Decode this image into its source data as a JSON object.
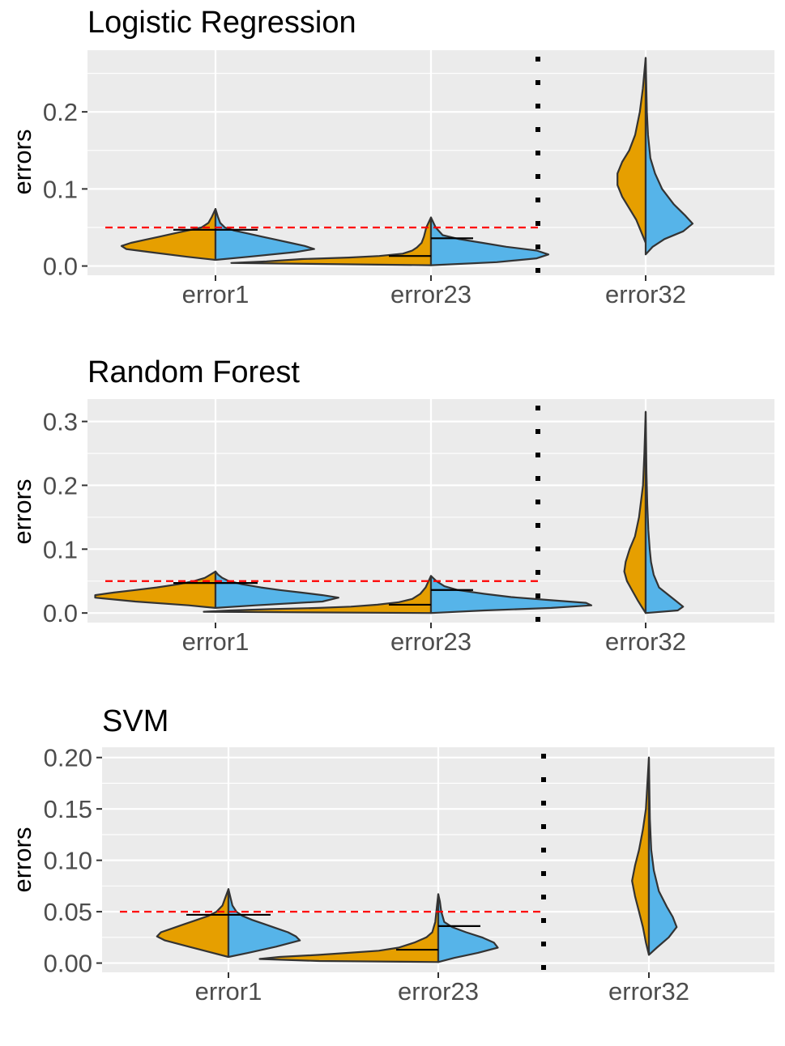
{
  "chart_data": [
    {
      "type": "violin",
      "title": "Logistic Regression",
      "ylabel": "errors",
      "xlabel": "",
      "categories": [
        "error1",
        "error23",
        "error32"
      ],
      "ylim": [
        -0.012,
        0.28
      ],
      "yticks": [
        0.0,
        0.1,
        0.2
      ],
      "ytick_labels": [
        "0.0",
        "0.1",
        "0.2"
      ],
      "reference_line": 0.05,
      "divider_after_category": "error23",
      "violins": [
        {
          "category": "error1",
          "median": 0.047,
          "left": [
            [
              0.008,
              0
            ],
            [
              0.012,
              0.12
            ],
            [
              0.018,
              0.28
            ],
            [
              0.022,
              0.38
            ],
            [
              0.026,
              0.4
            ],
            [
              0.03,
              0.36
            ],
            [
              0.034,
              0.3
            ],
            [
              0.038,
              0.24
            ],
            [
              0.042,
              0.18
            ],
            [
              0.046,
              0.12
            ],
            [
              0.05,
              0.06
            ],
            [
              0.056,
              0.03
            ],
            [
              0.064,
              0.015
            ],
            [
              0.074,
              0
            ]
          ],
          "right": [
            [
              0.008,
              0
            ],
            [
              0.012,
              0.14
            ],
            [
              0.018,
              0.34
            ],
            [
              0.022,
              0.42
            ],
            [
              0.026,
              0.38
            ],
            [
              0.03,
              0.32
            ],
            [
              0.034,
              0.26
            ],
            [
              0.038,
              0.2
            ],
            [
              0.042,
              0.14
            ],
            [
              0.046,
              0.08
            ],
            [
              0.05,
              0.04
            ],
            [
              0.056,
              0.02
            ],
            [
              0.064,
              0.01
            ],
            [
              0.074,
              0
            ]
          ]
        },
        {
          "category": "error23",
          "median": 0.013,
          "right_median": 0.036,
          "left": [
            [
              0.001,
              0
            ],
            [
              0.004,
              0.85
            ],
            [
              0.006,
              0.7
            ],
            [
              0.009,
              0.55
            ],
            [
              0.011,
              0.35
            ],
            [
              0.013,
              0.22
            ],
            [
              0.016,
              0.12
            ],
            [
              0.02,
              0.08
            ],
            [
              0.024,
              0.06
            ],
            [
              0.03,
              0.04
            ],
            [
              0.038,
              0.03
            ],
            [
              0.05,
              0.02
            ],
            [
              0.063,
              0
            ]
          ],
          "right": [
            [
              0.001,
              0
            ],
            [
              0.005,
              0.28
            ],
            [
              0.01,
              0.45
            ],
            [
              0.015,
              0.5
            ],
            [
              0.02,
              0.45
            ],
            [
              0.025,
              0.32
            ],
            [
              0.03,
              0.22
            ],
            [
              0.035,
              0.12
            ],
            [
              0.04,
              0.05
            ],
            [
              0.05,
              0.02
            ],
            [
              0.063,
              0
            ]
          ]
        },
        {
          "category": "error32",
          "left": [
            [
              0.03,
              0
            ],
            [
              0.045,
              0.02
            ],
            [
              0.06,
              0.04
            ],
            [
              0.075,
              0.07
            ],
            [
              0.09,
              0.1
            ],
            [
              0.105,
              0.12
            ],
            [
              0.12,
              0.12
            ],
            [
              0.135,
              0.1
            ],
            [
              0.15,
              0.07
            ],
            [
              0.17,
              0.045
            ],
            [
              0.2,
              0.025
            ],
            [
              0.23,
              0.012
            ],
            [
              0.27,
              0
            ]
          ],
          "right": [
            [
              0.015,
              0
            ],
            [
              0.025,
              0.03
            ],
            [
              0.035,
              0.08
            ],
            [
              0.045,
              0.16
            ],
            [
              0.055,
              0.2
            ],
            [
              0.065,
              0.17
            ],
            [
              0.08,
              0.12
            ],
            [
              0.1,
              0.07
            ],
            [
              0.12,
              0.04
            ],
            [
              0.14,
              0.02
            ],
            [
              0.17,
              0.01
            ],
            [
              0.2,
              0.005
            ],
            [
              0.27,
              0
            ]
          ]
        }
      ]
    },
    {
      "type": "violin",
      "title": "Random Forest",
      "ylabel": "errors",
      "xlabel": "",
      "categories": [
        "error1",
        "error23",
        "error32"
      ],
      "ylim": [
        -0.015,
        0.335
      ],
      "yticks": [
        0.0,
        0.1,
        0.2,
        0.3
      ],
      "ytick_labels": [
        "0.0",
        "0.1",
        "0.2",
        "0.3"
      ],
      "reference_line": 0.05,
      "divider_after_category": "error23",
      "violins": [
        {
          "category": "error1",
          "median": 0.047,
          "left": [
            [
              0.008,
              0
            ],
            [
              0.012,
              0.1
            ],
            [
              0.018,
              0.3
            ],
            [
              0.024,
              0.45
            ],
            [
              0.028,
              0.45
            ],
            [
              0.032,
              0.38
            ],
            [
              0.036,
              0.3
            ],
            [
              0.04,
              0.22
            ],
            [
              0.045,
              0.14
            ],
            [
              0.05,
              0.08
            ],
            [
              0.055,
              0.04
            ],
            [
              0.06,
              0.02
            ],
            [
              0.065,
              0
            ]
          ],
          "right": [
            [
              0.008,
              0
            ],
            [
              0.012,
              0.15
            ],
            [
              0.018,
              0.4
            ],
            [
              0.024,
              0.46
            ],
            [
              0.028,
              0.4
            ],
            [
              0.032,
              0.32
            ],
            [
              0.036,
              0.24
            ],
            [
              0.04,
              0.17
            ],
            [
              0.045,
              0.1
            ],
            [
              0.05,
              0.05
            ],
            [
              0.055,
              0.025
            ],
            [
              0.06,
              0.01
            ],
            [
              0.065,
              0
            ]
          ]
        },
        {
          "category": "error23",
          "median": 0.013,
          "right_median": 0.036,
          "left": [
            [
              0.0,
              0
            ],
            [
              0.002,
              0.85
            ],
            [
              0.004,
              0.75
            ],
            [
              0.006,
              0.6
            ],
            [
              0.008,
              0.42
            ],
            [
              0.01,
              0.3
            ],
            [
              0.013,
              0.2
            ],
            [
              0.017,
              0.12
            ],
            [
              0.022,
              0.07
            ],
            [
              0.03,
              0.04
            ],
            [
              0.04,
              0.02
            ],
            [
              0.058,
              0
            ]
          ],
          "right": [
            [
              0.0,
              0
            ],
            [
              0.004,
              0.2
            ],
            [
              0.008,
              0.45
            ],
            [
              0.012,
              0.6
            ],
            [
              0.016,
              0.58
            ],
            [
              0.02,
              0.45
            ],
            [
              0.025,
              0.3
            ],
            [
              0.03,
              0.2
            ],
            [
              0.036,
              0.1
            ],
            [
              0.042,
              0.05
            ],
            [
              0.05,
              0.02
            ],
            [
              0.058,
              0
            ]
          ]
        },
        {
          "category": "error32",
          "left": [
            [
              0.0,
              0
            ],
            [
              0.01,
              0.015
            ],
            [
              0.02,
              0.03
            ],
            [
              0.035,
              0.05
            ],
            [
              0.05,
              0.07
            ],
            [
              0.065,
              0.08
            ],
            [
              0.08,
              0.075
            ],
            [
              0.1,
              0.06
            ],
            [
              0.12,
              0.04
            ],
            [
              0.15,
              0.025
            ],
            [
              0.2,
              0.01
            ],
            [
              0.25,
              0.005
            ],
            [
              0.315,
              0
            ]
          ],
          "right": [
            [
              0.0,
              0
            ],
            [
              0.004,
              0.12
            ],
            [
              0.01,
              0.14
            ],
            [
              0.02,
              0.11
            ],
            [
              0.03,
              0.08
            ],
            [
              0.04,
              0.05
            ],
            [
              0.06,
              0.03
            ],
            [
              0.08,
              0.02
            ],
            [
              0.1,
              0.015
            ],
            [
              0.13,
              0.01
            ],
            [
              0.17,
              0.006
            ],
            [
              0.22,
              0.003
            ],
            [
              0.315,
              0
            ]
          ]
        }
      ]
    },
    {
      "type": "violin",
      "title": "SVM",
      "ylabel": "errors",
      "xlabel": "",
      "categories": [
        "error1",
        "error23",
        "error32"
      ],
      "ylim": [
        -0.009,
        0.21
      ],
      "yticks": [
        0.0,
        0.05,
        0.1,
        0.15,
        0.2
      ],
      "ytick_labels": [
        "0.00",
        "0.05",
        "0.10",
        "0.15",
        "0.20"
      ],
      "reference_line": 0.05,
      "divider_after_category": "error23",
      "violins": [
        {
          "category": "error1",
          "median": 0.047,
          "left": [
            [
              0.006,
              0
            ],
            [
              0.01,
              0.08
            ],
            [
              0.016,
              0.2
            ],
            [
              0.022,
              0.32
            ],
            [
              0.026,
              0.36
            ],
            [
              0.03,
              0.34
            ],
            [
              0.034,
              0.28
            ],
            [
              0.038,
              0.22
            ],
            [
              0.042,
              0.16
            ],
            [
              0.046,
              0.1
            ],
            [
              0.05,
              0.06
            ],
            [
              0.056,
              0.03
            ],
            [
              0.064,
              0.015
            ],
            [
              0.072,
              0
            ]
          ],
          "right": [
            [
              0.006,
              0
            ],
            [
              0.01,
              0.1
            ],
            [
              0.016,
              0.24
            ],
            [
              0.022,
              0.36
            ],
            [
              0.026,
              0.34
            ],
            [
              0.03,
              0.3
            ],
            [
              0.034,
              0.24
            ],
            [
              0.038,
              0.18
            ],
            [
              0.042,
              0.12
            ],
            [
              0.046,
              0.07
            ],
            [
              0.05,
              0.04
            ],
            [
              0.056,
              0.02
            ],
            [
              0.064,
              0.01
            ],
            [
              0.072,
              0
            ]
          ]
        },
        {
          "category": "error23",
          "median": 0.013,
          "right_median": 0.036,
          "left": [
            [
              0.001,
              0
            ],
            [
              0.002,
              0.6
            ],
            [
              0.004,
              0.9
            ],
            [
              0.006,
              0.8
            ],
            [
              0.008,
              0.6
            ],
            [
              0.01,
              0.45
            ],
            [
              0.012,
              0.3
            ],
            [
              0.015,
              0.2
            ],
            [
              0.02,
              0.12
            ],
            [
              0.025,
              0.06
            ],
            [
              0.03,
              0.03
            ],
            [
              0.04,
              0.015
            ],
            [
              0.055,
              0.007
            ],
            [
              0.067,
              0
            ]
          ],
          "right": [
            [
              0.001,
              0
            ],
            [
              0.005,
              0.08
            ],
            [
              0.01,
              0.2
            ],
            [
              0.015,
              0.3
            ],
            [
              0.02,
              0.28
            ],
            [
              0.025,
              0.22
            ],
            [
              0.03,
              0.14
            ],
            [
              0.035,
              0.07
            ],
            [
              0.04,
              0.03
            ],
            [
              0.05,
              0.015
            ],
            [
              0.06,
              0.008
            ],
            [
              0.067,
              0
            ]
          ]
        },
        {
          "category": "error32",
          "left": [
            [
              0.008,
              0
            ],
            [
              0.02,
              0.015
            ],
            [
              0.035,
              0.03
            ],
            [
              0.05,
              0.05
            ],
            [
              0.065,
              0.07
            ],
            [
              0.08,
              0.085
            ],
            [
              0.095,
              0.07
            ],
            [
              0.11,
              0.05
            ],
            [
              0.13,
              0.03
            ],
            [
              0.15,
              0.015
            ],
            [
              0.18,
              0.006
            ],
            [
              0.2,
              0
            ]
          ],
          "right": [
            [
              0.008,
              0
            ],
            [
              0.015,
              0.04
            ],
            [
              0.025,
              0.1
            ],
            [
              0.035,
              0.14
            ],
            [
              0.045,
              0.12
            ],
            [
              0.055,
              0.09
            ],
            [
              0.07,
              0.05
            ],
            [
              0.09,
              0.025
            ],
            [
              0.11,
              0.012
            ],
            [
              0.14,
              0.005
            ],
            [
              0.2,
              0
            ]
          ]
        }
      ]
    }
  ],
  "colors": {
    "panel_background": "#ebebeb",
    "grid_major": "#ffffff",
    "grid_minor": "#f5f5f5",
    "left_fill": "#e69f00",
    "right_fill": "#56b4e9",
    "violin_outline": "#333333",
    "reference_line": "#ff0000",
    "divider": "#000000",
    "median_line": "#000000"
  }
}
